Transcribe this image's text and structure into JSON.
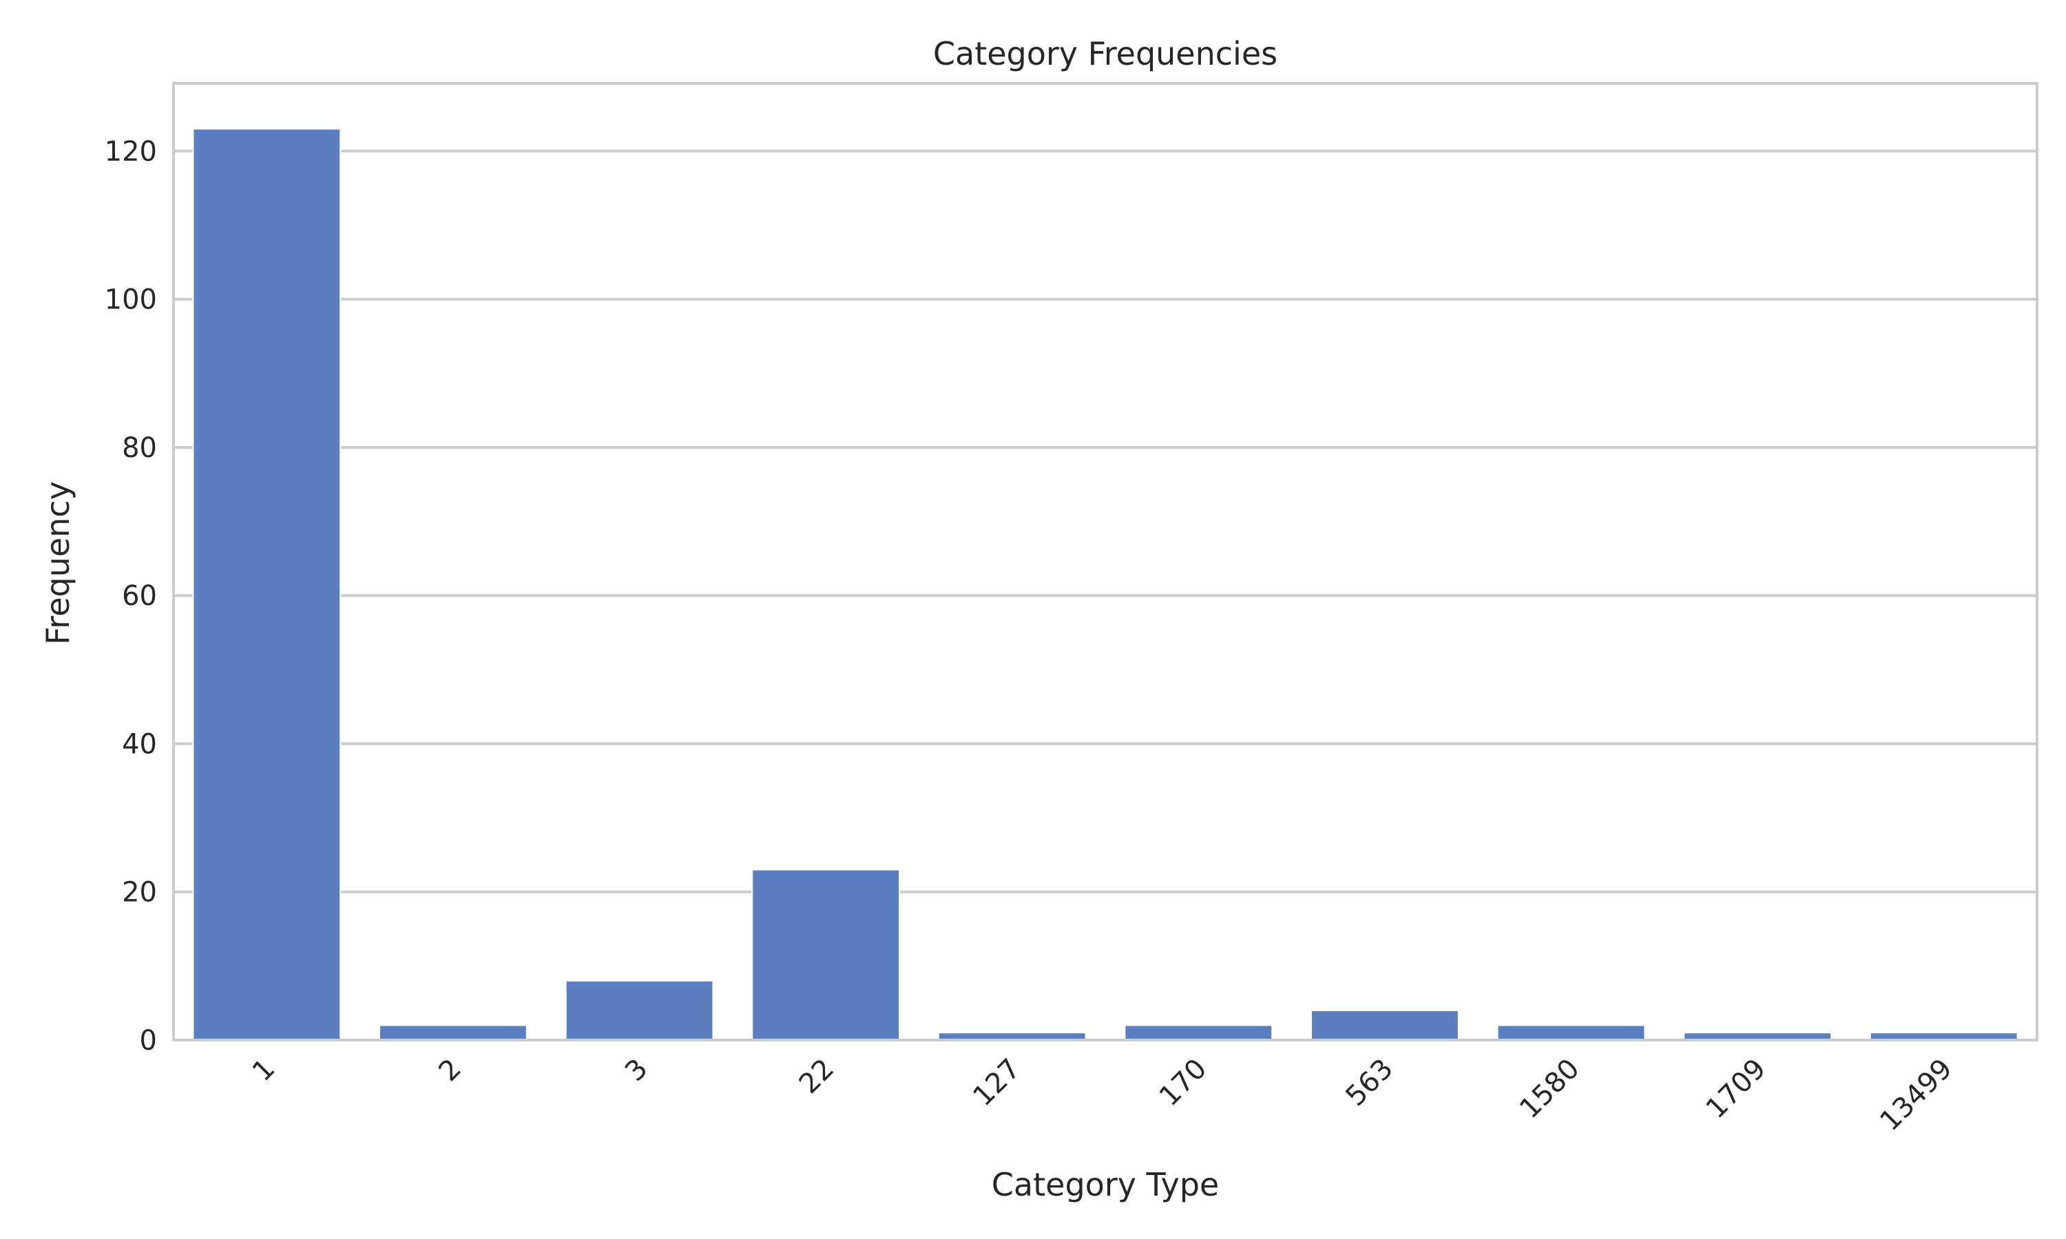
{
  "chart_data": {
    "type": "bar",
    "title": "Category Frequencies",
    "xlabel": "Category Type",
    "ylabel": "Frequency",
    "categories": [
      "1",
      "2",
      "3",
      "22",
      "127",
      "170",
      "563",
      "1580",
      "1709",
      "13499"
    ],
    "values": [
      123,
      2,
      8,
      23,
      1,
      2,
      4,
      2,
      1,
      1
    ],
    "ylim": [
      0,
      129.15
    ],
    "yticks": [
      0,
      20,
      40,
      60,
      80,
      100,
      120
    ],
    "grid": "horizontal",
    "legend": "none",
    "bar_color": "#5a7ebf"
  }
}
